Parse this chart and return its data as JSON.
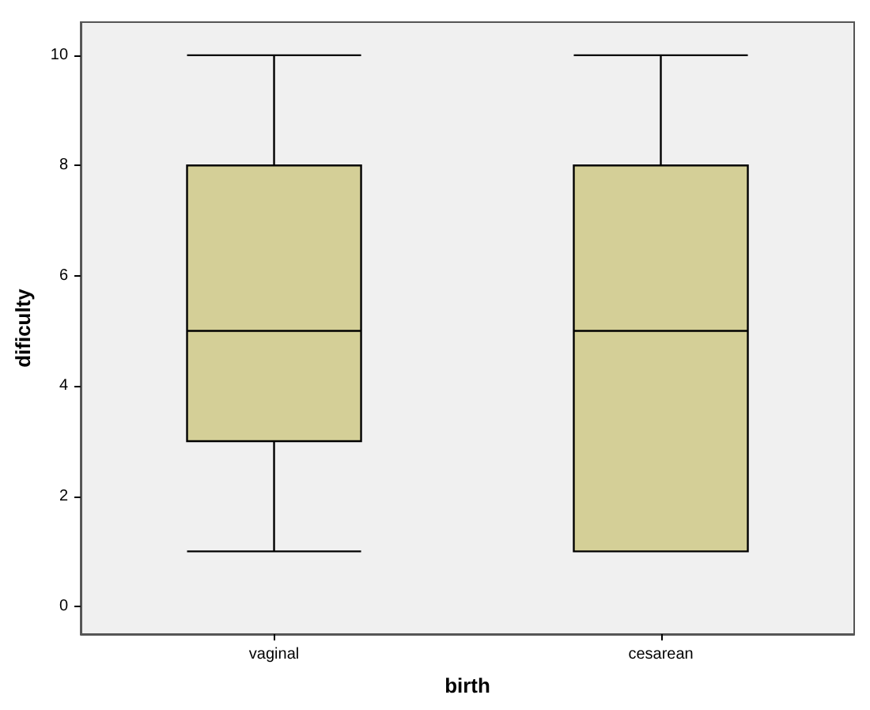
{
  "chart_data": {
    "type": "box",
    "xlabel": "birth",
    "ylabel": "dificulty",
    "categories": [
      "vaginal",
      "cesarean"
    ],
    "boxes": [
      {
        "low": 1,
        "q1": 3,
        "median": 5,
        "q3": 8,
        "high": 10
      },
      {
        "low": 1,
        "q1": 1,
        "median": 5,
        "q3": 8,
        "high": 10
      }
    ],
    "color": "#d4cf97",
    "ylim": [
      -0.5,
      10.6
    ],
    "yticks": [
      0,
      2,
      4,
      6,
      8,
      10
    ]
  }
}
